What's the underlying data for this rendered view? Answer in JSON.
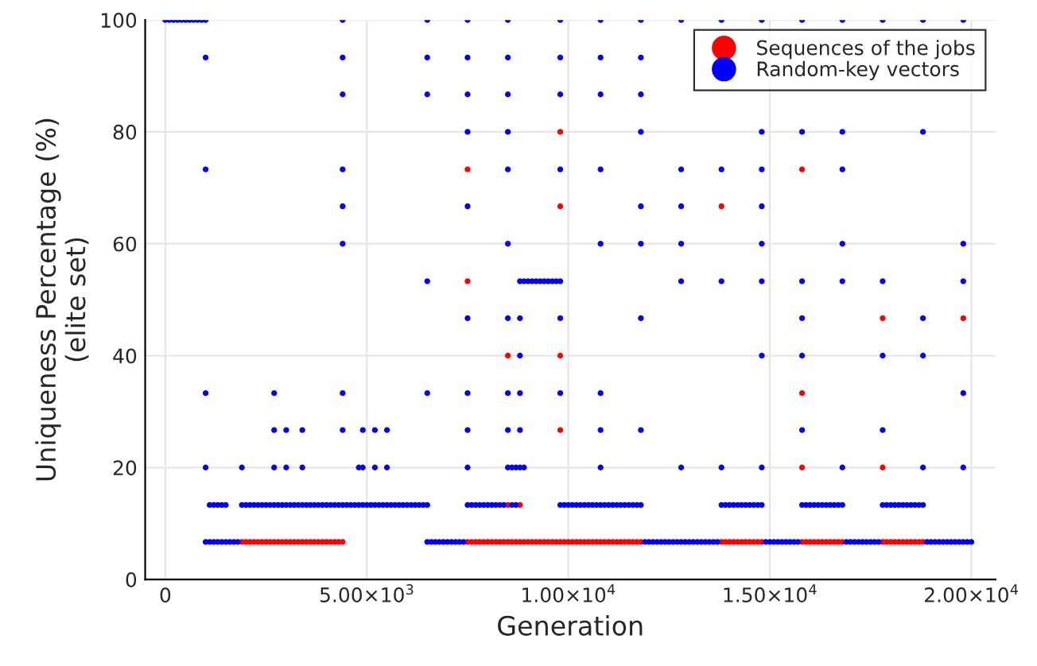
{
  "chart_data": {
    "type": "scatter",
    "xlabel": "Generation",
    "ylabel": "Uniqueness Percentage (%)\n(elite set)",
    "xlim": [
      -500,
      20600
    ],
    "ylim": [
      0,
      100
    ],
    "xticks": [
      0,
      {
        "value": 5000,
        "label": "5.00×10$^{3}$"
      },
      {
        "value": 10000,
        "label": "1.00×10$^{4}$"
      },
      {
        "value": 15000,
        "label": "1.50×10$^{4}$"
      },
      {
        "value": 20000,
        "label": "2.00×10$^{4}$"
      }
    ],
    "yticks": [
      0,
      20,
      40,
      60,
      80,
      100
    ],
    "grid": true,
    "legend": "top right",
    "marker": "circle",
    "series": [
      {
        "name": "Sequences of the jobs",
        "color": "#ff0000",
        "x": [
          1900,
          2000,
          2100,
          2200,
          2300,
          2400,
          2500,
          2600,
          2700,
          2800,
          2900
        ],
        "values": [
          6.7,
          6.7,
          6.7,
          6.7,
          6.7,
          6.7,
          6.7,
          6.7,
          6.7,
          6.7,
          6.7
        ]
      },
      {
        "color": "#ff0000",
        "x": [
          3000,
          3100,
          3200,
          3300,
          3400,
          3500,
          3600,
          3700,
          3800,
          3900,
          4000
        ],
        "values": [
          6.7,
          6.7,
          6.7,
          6.7,
          6.7,
          6.7,
          6.7,
          6.7,
          6.7,
          6.7,
          6.7
        ]
      },
      {
        "color": "#ff0000",
        "x": [
          4100,
          4200,
          4300,
          4400
        ],
        "values": [
          6.7,
          6.7,
          6.7,
          6.7
        ]
      },
      {
        "color": "#ff0000",
        "x": [
          7500,
          7600,
          7700,
          7800,
          7900,
          8000,
          8100,
          8200,
          8300,
          8400,
          8500
        ],
        "values": [
          6.7,
          6.7,
          6.7,
          6.7,
          6.7,
          6.7,
          6.7,
          6.7,
          6.7,
          6.7,
          6.7
        ]
      },
      {
        "color": "#ff0000",
        "x": [
          8600,
          8700,
          8800,
          8900,
          9000,
          9100,
          9200,
          9300,
          9400,
          9500,
          9600
        ],
        "values": [
          6.7,
          6.7,
          6.7,
          6.7,
          6.7,
          6.7,
          6.7,
          6.7,
          6.7,
          6.7,
          6.7
        ]
      },
      {
        "color": "#ff0000",
        "x": [
          9700,
          9800,
          9900,
          10000,
          10100,
          10200,
          10300,
          10400,
          10500,
          10600,
          10700
        ],
        "values": [
          6.7,
          6.7,
          6.7,
          6.7,
          6.7,
          6.7,
          6.7,
          6.7,
          6.7,
          6.7,
          6.7
        ]
      },
      {
        "color": "#ff0000",
        "x": [
          10800,
          10900,
          11000,
          11100,
          11200,
          11300,
          11400,
          11500,
          11600,
          11700,
          11800
        ],
        "values": [
          6.7,
          6.7,
          6.7,
          6.7,
          6.7,
          6.7,
          6.7,
          6.7,
          6.7,
          6.7,
          6.7
        ]
      },
      {
        "color": "#ff0000",
        "x": [
          13800,
          13900,
          14000,
          14100,
          14200,
          14300,
          14400,
          14500,
          14600,
          14700,
          14800
        ],
        "values": [
          6.7,
          6.7,
          6.7,
          6.7,
          6.7,
          6.7,
          6.7,
          6.7,
          6.7,
          6.7,
          6.7
        ]
      },
      {
        "color": "#ff0000",
        "x": [
          15800,
          15900,
          16000,
          16100,
          16200,
          16300,
          16400,
          16500,
          16600,
          16700,
          16800
        ],
        "values": [
          6.7,
          6.7,
          6.7,
          6.7,
          6.7,
          6.7,
          6.7,
          6.7,
          6.7,
          6.7,
          6.7
        ]
      },
      {
        "color": "#ff0000",
        "x": [
          17800,
          17900,
          18000,
          18100,
          18200,
          18300,
          18400,
          18500,
          18600,
          18700,
          18800
        ],
        "values": [
          6.7,
          6.7,
          6.7,
          6.7,
          6.7,
          6.7,
          6.7,
          6.7,
          6.7,
          6.7,
          6.7
        ]
      },
      {
        "color": "#ff0000",
        "x": [
          8500,
          8800,
          7500,
          7500,
          8500,
          9800,
          9800,
          9800,
          9800,
          13800,
          15800,
          15800,
          15800,
          17800,
          17800,
          19800
        ],
        "values": [
          13.3,
          13.3,
          73.3,
          53.3,
          40,
          80,
          66.7,
          40,
          26.7,
          66.7,
          73.3,
          33.3,
          20,
          46.7,
          20,
          46.7
        ]
      },
      {
        "name": "Random-key vectors",
        "color": "#0000ff",
        "x": [
          0,
          100,
          200,
          300,
          400,
          500,
          600,
          700,
          800,
          900,
          1000
        ],
        "values": [
          100,
          100,
          100,
          100,
          100,
          100,
          100,
          100,
          100,
          100,
          100
        ]
      },
      {
        "color": "#0000ff",
        "x": [
          4400,
          6500,
          7500,
          8500,
          9800,
          10800,
          11800,
          12800
        ],
        "values": [
          100,
          100,
          100,
          100,
          100,
          100,
          100,
          100
        ]
      },
      {
        "color": "#0000ff",
        "x": [
          13800,
          14800,
          15800,
          16800,
          17800,
          18800,
          19800
        ],
        "values": [
          100,
          100,
          100,
          100,
          100,
          100,
          100
        ]
      },
      {
        "color": "#0000ff",
        "x": [
          1000,
          4400,
          6500,
          7500,
          8500,
          9800,
          10800,
          11800
        ],
        "values": [
          93.3,
          93.3,
          93.3,
          93.3,
          93.3,
          93.3,
          93.3,
          93.3
        ]
      },
      {
        "color": "#0000ff",
        "x": [
          4400,
          6500,
          7500,
          8500,
          9800,
          10800,
          11800
        ],
        "values": [
          86.7,
          86.7,
          86.7,
          86.7,
          86.7,
          86.7,
          86.7
        ]
      },
      {
        "color": "#0000ff",
        "x": [
          7500,
          8500,
          11800,
          14800,
          15800,
          16800,
          18800
        ],
        "values": [
          80,
          80,
          80,
          80,
          80,
          80,
          80
        ]
      },
      {
        "color": "#0000ff",
        "x": [
          1000,
          4400,
          8500,
          9800,
          10800,
          12800,
          13800,
          14800,
          16800
        ],
        "values": [
          73.3,
          73.3,
          73.3,
          73.3,
          73.3,
          73.3,
          73.3,
          73.3,
          73.3
        ]
      },
      {
        "color": "#0000ff",
        "x": [
          4400,
          7500,
          11800,
          12800,
          14800
        ],
        "values": [
          66.7,
          66.7,
          66.7,
          66.7,
          66.7
        ]
      },
      {
        "color": "#0000ff",
        "x": [
          4400,
          8500,
          10800,
          11800,
          12800,
          14800,
          16800,
          19800
        ],
        "values": [
          60,
          60,
          60,
          60,
          60,
          60,
          60,
          60
        ]
      },
      {
        "color": "#0000ff",
        "x": [
          6500,
          12800,
          13800,
          14800,
          15800,
          16800,
          17800,
          19800
        ],
        "values": [
          53.3,
          53.3,
          53.3,
          53.3,
          53.3,
          53.3,
          53.3,
          53.3
        ]
      },
      {
        "color": "#0000ff",
        "x": [
          8800,
          8900,
          9000,
          9100,
          9200,
          9300,
          9400,
          9500,
          9600,
          9700,
          9800
        ],
        "values": [
          53.3,
          53.3,
          53.3,
          53.3,
          53.3,
          53.3,
          53.3,
          53.3,
          53.3,
          53.3,
          53.3
        ]
      },
      {
        "color": "#0000ff",
        "x": [
          7500,
          8500,
          8800,
          9800,
          11800,
          15800,
          18800
        ],
        "values": [
          46.7,
          46.7,
          46.7,
          46.7,
          46.7,
          46.7,
          46.7
        ]
      },
      {
        "color": "#0000ff",
        "x": [
          8800,
          14800,
          15800,
          17800,
          18800
        ],
        "values": [
          40,
          40,
          40,
          40,
          40
        ]
      },
      {
        "color": "#0000ff",
        "x": [
          1000,
          2700,
          4400,
          6500,
          7500,
          8500,
          8800,
          9800,
          10800,
          19800
        ],
        "values": [
          33.3,
          33.3,
          33.3,
          33.3,
          33.3,
          33.3,
          33.3,
          33.3,
          33.3,
          33.3
        ]
      },
      {
        "color": "#0000ff",
        "x": [
          2700,
          3000,
          3400,
          4400,
          4900,
          5200,
          5500
        ],
        "values": [
          26.7,
          26.7,
          26.7,
          26.7,
          26.7,
          26.7,
          26.7
        ]
      },
      {
        "color": "#0000ff",
        "x": [
          7500,
          8500,
          8800,
          10800,
          11800,
          15800,
          17800
        ],
        "values": [
          26.7,
          26.7,
          26.7,
          26.7,
          26.7,
          26.7,
          26.7
        ]
      },
      {
        "color": "#0000ff",
        "x": [
          1000,
          1900,
          2700,
          3000,
          3400,
          4800,
          4900,
          5200,
          5500
        ],
        "values": [
          20,
          20,
          20,
          20,
          20,
          20,
          20,
          20,
          20
        ]
      },
      {
        "color": "#0000ff",
        "x": [
          7500,
          10800,
          12800,
          13800,
          14800,
          16800,
          18800,
          19800
        ],
        "values": [
          20,
          20,
          20,
          20,
          20,
          20,
          20,
          20
        ]
      },
      {
        "color": "#0000ff",
        "x": [
          8500,
          8600,
          8700,
          8800,
          8900
        ],
        "values": [
          20,
          20,
          20,
          20,
          20
        ]
      },
      {
        "color": "#0000ff",
        "x": [
          1100,
          1200,
          1300,
          1400,
          1500
        ],
        "values": [
          13.3,
          13.3,
          13.3,
          13.3,
          13.3
        ]
      },
      {
        "color": "#0000ff",
        "x": [
          1900,
          2000,
          2100,
          2200,
          2300,
          2400,
          2500,
          2600,
          2700,
          2800,
          2900
        ],
        "values": [
          13.3,
          13.3,
          13.3,
          13.3,
          13.3,
          13.3,
          13.3,
          13.3,
          13.3,
          13.3,
          13.3
        ]
      },
      {
        "color": "#0000ff",
        "x": [
          3000,
          3100,
          3200,
          3300,
          3400,
          3500,
          3600,
          3700,
          3800,
          3900,
          4000
        ],
        "values": [
          13.3,
          13.3,
          13.3,
          13.3,
          13.3,
          13.3,
          13.3,
          13.3,
          13.3,
          13.3,
          13.3
        ]
      },
      {
        "color": "#0000ff",
        "x": [
          4100,
          4200,
          4300,
          4400,
          4500,
          4600,
          4700,
          4800,
          4900,
          5000,
          5100
        ],
        "values": [
          13.3,
          13.3,
          13.3,
          13.3,
          13.3,
          13.3,
          13.3,
          13.3,
          13.3,
          13.3,
          13.3
        ]
      },
      {
        "color": "#0000ff",
        "x": [
          5200,
          5300,
          5400,
          5500,
          5600,
          5700,
          5800,
          5900,
          6000,
          6100,
          6200
        ],
        "values": [
          13.3,
          13.3,
          13.3,
          13.3,
          13.3,
          13.3,
          13.3,
          13.3,
          13.3,
          13.3,
          13.3
        ]
      },
      {
        "color": "#0000ff",
        "x": [
          6300,
          6400,
          6500
        ],
        "values": [
          13.3,
          13.3,
          13.3
        ]
      },
      {
        "color": "#0000ff",
        "x": [
          7500,
          7600,
          7700,
          7800,
          7900,
          8000,
          8100,
          8200,
          8300,
          8400
        ],
        "values": [
          13.3,
          13.3,
          13.3,
          13.3,
          13.3,
          13.3,
          13.3,
          13.3,
          13.3,
          13.3
        ]
      },
      {
        "color": "#0000ff",
        "x": [
          8600,
          8700
        ],
        "values": [
          13.3,
          13.3
        ]
      },
      {
        "color": "#0000ff",
        "x": [
          9800,
          9900,
          10000,
          10100,
          10200,
          10300,
          10400,
          10500,
          10600,
          10700,
          10800
        ],
        "values": [
          13.3,
          13.3,
          13.3,
          13.3,
          13.3,
          13.3,
          13.3,
          13.3,
          13.3,
          13.3,
          13.3
        ]
      },
      {
        "color": "#0000ff",
        "x": [
          10900,
          11000,
          11100,
          11200,
          11300,
          11400,
          11500,
          11600,
          11700,
          11800
        ],
        "values": [
          13.3,
          13.3,
          13.3,
          13.3,
          13.3,
          13.3,
          13.3,
          13.3,
          13.3,
          13.3
        ]
      },
      {
        "color": "#0000ff",
        "x": [
          13800,
          13900,
          14000,
          14100,
          14200,
          14300,
          14400,
          14500,
          14600,
          14700,
          14800
        ],
        "values": [
          13.3,
          13.3,
          13.3,
          13.3,
          13.3,
          13.3,
          13.3,
          13.3,
          13.3,
          13.3,
          13.3
        ]
      },
      {
        "color": "#0000ff",
        "x": [
          15800,
          15900,
          16000,
          16100,
          16200,
          16300,
          16400,
          16500,
          16600,
          16700,
          16800
        ],
        "values": [
          13.3,
          13.3,
          13.3,
          13.3,
          13.3,
          13.3,
          13.3,
          13.3,
          13.3,
          13.3,
          13.3
        ]
      },
      {
        "color": "#0000ff",
        "x": [
          17800,
          17900,
          18000,
          18100,
          18200,
          18300,
          18400,
          18500,
          18600,
          18700,
          18800
        ],
        "values": [
          13.3,
          13.3,
          13.3,
          13.3,
          13.3,
          13.3,
          13.3,
          13.3,
          13.3,
          13.3,
          13.3
        ]
      },
      {
        "color": "#0000ff",
        "x": [
          1000,
          1100,
          1200,
          1300,
          1400,
          1500,
          1600,
          1700,
          1800
        ],
        "values": [
          6.7,
          6.7,
          6.7,
          6.7,
          6.7,
          6.7,
          6.7,
          6.7,
          6.7
        ]
      },
      {
        "color": "#0000ff",
        "x": [
          6500,
          6600,
          6700,
          6800,
          6900,
          7000,
          7100,
          7200,
          7300,
          7400
        ],
        "values": [
          6.7,
          6.7,
          6.7,
          6.7,
          6.7,
          6.7,
          6.7,
          6.7,
          6.7,
          6.7
        ]
      },
      {
        "color": "#0000ff",
        "x": [
          11900,
          12000,
          12100,
          12200,
          12300,
          12400,
          12500,
          12600,
          12700,
          12800,
          12900
        ],
        "values": [
          6.7,
          6.7,
          6.7,
          6.7,
          6.7,
          6.7,
          6.7,
          6.7,
          6.7,
          6.7,
          6.7
        ]
      },
      {
        "color": "#0000ff",
        "x": [
          13000,
          13100,
          13200,
          13300,
          13400,
          13500,
          13600,
          13700
        ],
        "values": [
          6.7,
          6.7,
          6.7,
          6.7,
          6.7,
          6.7,
          6.7,
          6.7
        ]
      },
      {
        "color": "#0000ff",
        "x": [
          14900,
          15000,
          15100,
          15200,
          15300,
          15400,
          15500,
          15600,
          15700
        ],
        "values": [
          6.7,
          6.7,
          6.7,
          6.7,
          6.7,
          6.7,
          6.7,
          6.7,
          6.7
        ]
      },
      {
        "color": "#0000ff",
        "x": [
          16900,
          17000,
          17100,
          17200,
          17300,
          17400,
          17500,
          17600,
          17700
        ],
        "values": [
          6.7,
          6.7,
          6.7,
          6.7,
          6.7,
          6.7,
          6.7,
          6.7,
          6.7
        ]
      },
      {
        "color": "#0000ff",
        "x": [
          18900,
          19000,
          19100,
          19200,
          19300,
          19400,
          19500,
          19600,
          19700,
          19800,
          19900
        ],
        "values": [
          6.7,
          6.7,
          6.7,
          6.7,
          6.7,
          6.7,
          6.7,
          6.7,
          6.7,
          6.7,
          6.7
        ]
      },
      {
        "color": "#0000ff",
        "x": [
          20000
        ],
        "values": [
          6.7
        ]
      }
    ]
  }
}
